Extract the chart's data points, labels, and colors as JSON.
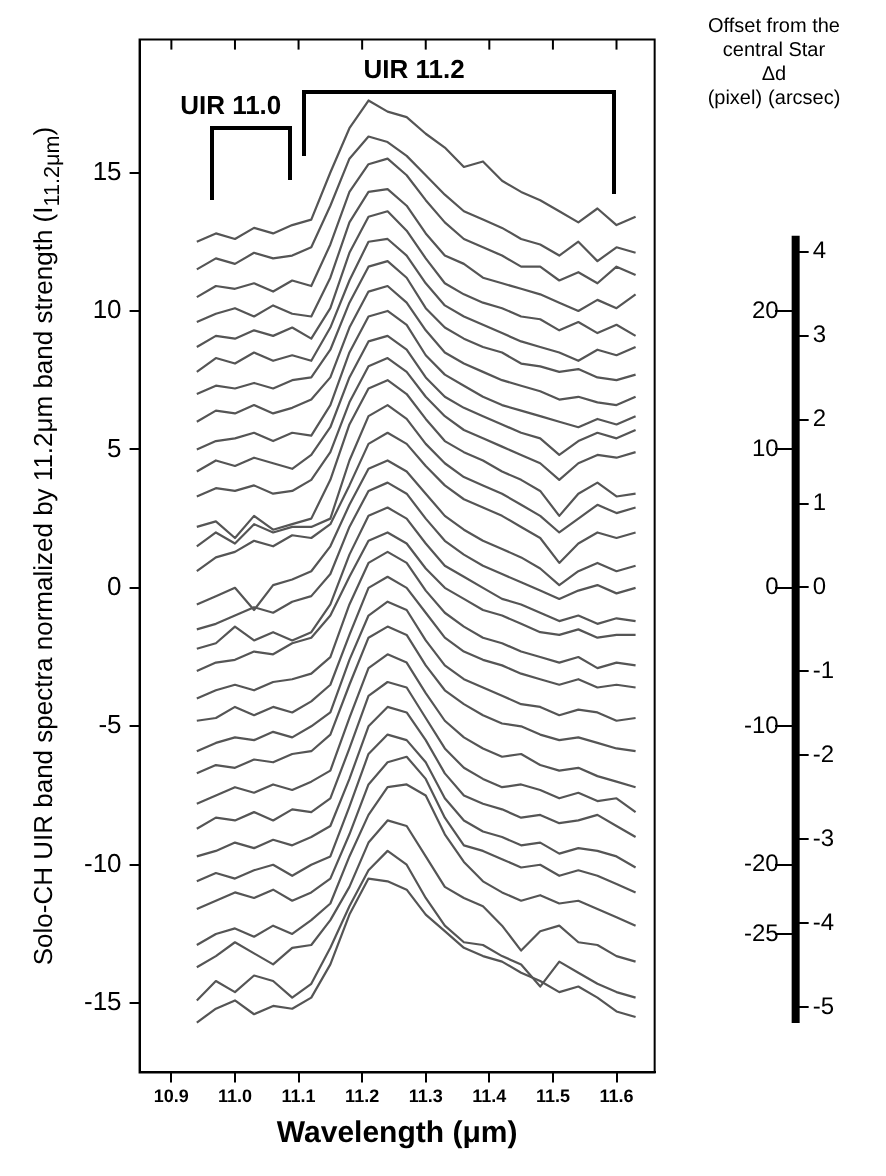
{
  "chart_data": {
    "type": "line",
    "xlabel": "Wavelength (μm)",
    "ylabel": "Solo-CH UIR band spectra normalized by 11.2μm band strength (I$_{11.2μm}$)",
    "y2label": "(pixel)",
    "y3label": "(arcsec)",
    "color": "#555555",
    "marker": "none",
    "annotations": [
      "Offset from the central Star",
      "Δd",
      "UIR 11.0",
      "UIR 11.2"
    ],
    "xlim": [
      10.85,
      11.66
    ],
    "xticks": [
      10.9,
      {
        "value": 11,
        "label": "11.0"
      },
      11.1,
      11.2,
      11.3,
      11.4,
      11.5,
      11.6
    ],
    "ylim": [
      -17.5,
      19.8
    ],
    "yticks": [
      -15,
      -10,
      -5,
      0,
      5,
      10,
      15
    ],
    "y2lim": [
      -35,
      39.6
    ],
    "y2ticks": [
      20,
      10,
      0,
      -10,
      -20,
      -25
    ],
    "y3lim": [
      -5.78,
      6.53
    ],
    "y3ticks": [
      4,
      3,
      2,
      1,
      0,
      -1,
      -2,
      -3,
      -4,
      -5
    ],
    "x": [
      10.94,
      10.97,
      11.0,
      11.03,
      11.06,
      11.09,
      11.12,
      11.15,
      11.18,
      11.21,
      11.24,
      11.27,
      11.3,
      11.33,
      11.36,
      11.39,
      11.42,
      11.45,
      11.48,
      11.51,
      11.54,
      11.57,
      11.6,
      11.63
    ],
    "series": [
      {
        "values": [
          12.5,
          12.8,
          12.6,
          13.0,
          12.8,
          13.1,
          13.3,
          15.0,
          16.6,
          17.6,
          17.2,
          17.0,
          16.4,
          15.9,
          15.2,
          15.4,
          14.7,
          14.3,
          14.0,
          13.6,
          13.2,
          13.7,
          13.1,
          13.4
        ]
      },
      {
        "values": [
          11.5,
          11.9,
          11.7,
          12.1,
          11.9,
          12.0,
          12.3,
          13.8,
          15.5,
          16.3,
          16.1,
          15.6,
          14.9,
          14.2,
          13.6,
          13.3,
          13.0,
          12.6,
          12.4,
          12.0,
          12.5,
          11.8,
          12.3,
          12.1
        ]
      },
      {
        "values": [
          10.5,
          10.9,
          10.8,
          11.0,
          10.7,
          11.1,
          10.9,
          12.4,
          14.3,
          15.3,
          15.5,
          14.9,
          14.0,
          13.2,
          12.6,
          12.3,
          12.0,
          11.6,
          11.6,
          11.1,
          11.4,
          11.0,
          11.6,
          11.3
        ]
      },
      {
        "values": [
          9.6,
          9.9,
          10.1,
          9.8,
          10.2,
          9.9,
          9.8,
          11.2,
          13.2,
          14.3,
          14.4,
          13.8,
          12.8,
          12.0,
          11.7,
          11.2,
          11.0,
          10.8,
          10.6,
          10.3,
          10.0,
          10.4,
          10.1,
          10.6
        ]
      },
      {
        "values": [
          8.7,
          9.1,
          9.0,
          9.3,
          9.1,
          9.4,
          9.0,
          10.1,
          12.1,
          13.4,
          13.6,
          12.9,
          11.9,
          11.0,
          10.6,
          10.3,
          10.1,
          9.8,
          9.7,
          9.3,
          9.6,
          9.2,
          9.5,
          9.1
        ]
      },
      {
        "values": [
          7.8,
          8.3,
          8.1,
          8.5,
          8.2,
          8.4,
          8.2,
          9.4,
          11.1,
          12.5,
          12.6,
          12.0,
          11.0,
          10.2,
          9.8,
          9.5,
          9.2,
          8.9,
          8.7,
          8.5,
          8.2,
          8.6,
          8.4,
          8.7
        ]
      },
      {
        "values": [
          7.0,
          7.3,
          7.2,
          7.4,
          7.2,
          7.5,
          7.6,
          8.6,
          10.3,
          11.6,
          11.8,
          11.2,
          10.1,
          9.4,
          9.0,
          8.7,
          8.5,
          8.1,
          8.0,
          7.8,
          7.9,
          7.6,
          7.5,
          7.7
        ]
      },
      {
        "values": [
          6.0,
          6.4,
          6.3,
          6.6,
          6.3,
          6.5,
          6.8,
          7.6,
          9.4,
          10.7,
          10.9,
          10.3,
          9.3,
          8.5,
          8.1,
          7.8,
          7.5,
          7.3,
          7.1,
          6.8,
          6.9,
          6.7,
          6.6,
          6.9
        ]
      },
      {
        "values": [
          5.0,
          5.3,
          5.4,
          5.6,
          5.3,
          5.6,
          5.5,
          6.6,
          8.5,
          9.8,
          10.0,
          9.5,
          8.4,
          7.7,
          7.3,
          6.9,
          6.6,
          6.4,
          6.2,
          6.0,
          5.8,
          6.1,
          5.9,
          6.2
        ]
      },
      {
        "values": [
          4.2,
          4.6,
          4.4,
          4.7,
          4.5,
          4.3,
          4.8,
          5.8,
          7.6,
          8.9,
          9.1,
          8.6,
          7.6,
          6.9,
          6.5,
          6.2,
          5.9,
          5.6,
          5.4,
          4.8,
          5.3,
          5.6,
          5.4,
          5.7
        ]
      },
      {
        "values": [
          3.3,
          3.6,
          3.5,
          3.7,
          3.4,
          3.5,
          3.9,
          4.9,
          6.7,
          8.0,
          8.3,
          7.8,
          6.9,
          6.2,
          5.7,
          5.4,
          5.1,
          4.8,
          4.5,
          3.9,
          4.5,
          4.8,
          4.7,
          4.9
        ]
      },
      {
        "values": [
          2.2,
          2.4,
          1.8,
          2.6,
          2.1,
          2.3,
          2.5,
          3.9,
          5.9,
          7.2,
          7.5,
          7.0,
          6.1,
          5.3,
          4.9,
          4.6,
          4.2,
          3.9,
          3.5,
          2.6,
          3.4,
          3.8,
          3.3,
          3.4
        ]
      },
      {
        "values": [
          1.5,
          2.0,
          1.6,
          2.3,
          2.0,
          2.2,
          2.2,
          2.5,
          4.6,
          6.2,
          6.6,
          6.1,
          5.2,
          4.5,
          4.0,
          3.7,
          3.4,
          3.0,
          2.6,
          2.0,
          2.5,
          3.0,
          2.7,
          2.9
        ]
      },
      {
        "values": [
          0.6,
          1.1,
          1.3,
          1.7,
          1.5,
          1.9,
          1.8,
          2.3,
          3.7,
          5.2,
          5.6,
          5.2,
          4.4,
          3.7,
          3.2,
          2.9,
          2.6,
          2.2,
          1.8,
          0.9,
          1.6,
          2.0,
          1.8,
          2.0
        ]
      },
      {
        "values": [
          -0.6,
          -0.3,
          0.0,
          -0.8,
          0.1,
          0.3,
          0.6,
          1.5,
          3.0,
          4.3,
          4.6,
          4.2,
          3.4,
          2.6,
          2.1,
          1.7,
          1.4,
          1.1,
          0.7,
          0.1,
          0.6,
          0.9,
          0.6,
          0.8
        ]
      },
      {
        "values": [
          -1.5,
          -1.3,
          -1.0,
          -0.7,
          -0.9,
          -0.5,
          -0.3,
          0.5,
          2.2,
          3.5,
          3.8,
          3.4,
          2.5,
          1.7,
          1.2,
          0.8,
          0.5,
          0.2,
          -0.1,
          -0.4,
          -0.1,
          0.1,
          -0.2,
          0.0
        ]
      },
      {
        "values": [
          -2.2,
          -2.0,
          -1.4,
          -1.9,
          -1.6,
          -1.9,
          -1.6,
          -0.6,
          1.2,
          2.6,
          2.9,
          2.5,
          1.6,
          0.8,
          0.4,
          0.0,
          -0.4,
          -0.6,
          -0.9,
          -1.2,
          -1.0,
          -1.3,
          -1.1,
          -1.2
        ]
      },
      {
        "values": [
          -3.0,
          -2.7,
          -2.6,
          -2.3,
          -2.4,
          -2.0,
          -1.8,
          -1.0,
          0.4,
          1.7,
          2.0,
          1.6,
          0.7,
          0.0,
          -0.4,
          -0.8,
          -1.0,
          -1.3,
          -1.6,
          -1.7,
          -1.5,
          -1.8,
          -1.7,
          -1.7
        ]
      },
      {
        "values": [
          -4.0,
          -3.7,
          -3.5,
          -3.7,
          -3.4,
          -3.3,
          -3.1,
          -2.5,
          -0.6,
          0.9,
          1.3,
          0.9,
          -0.1,
          -0.9,
          -1.4,
          -1.8,
          -2.0,
          -2.3,
          -2.5,
          -2.7,
          -2.5,
          -2.9,
          -2.7,
          -2.8
        ]
      },
      {
        "values": [
          -4.8,
          -4.7,
          -4.3,
          -4.6,
          -4.3,
          -4.5,
          -4.1,
          -3.5,
          -1.7,
          0.0,
          0.4,
          0.0,
          -0.9,
          -1.8,
          -2.3,
          -2.6,
          -2.8,
          -3.1,
          -3.3,
          -3.5,
          -3.3,
          -3.6,
          -3.5,
          -3.6
        ]
      },
      {
        "values": [
          -5.9,
          -5.6,
          -5.4,
          -5.5,
          -5.2,
          -5.4,
          -5.0,
          -4.5,
          -2.6,
          -1.0,
          -0.5,
          -0.8,
          -1.9,
          -2.8,
          -3.3,
          -3.6,
          -3.9,
          -4.2,
          -4.3,
          -4.6,
          -4.4,
          -4.5,
          -4.8,
          -4.7
        ]
      },
      {
        "values": [
          -6.7,
          -6.4,
          -6.5,
          -6.2,
          -6.3,
          -6.0,
          -5.9,
          -5.3,
          -3.5,
          -1.8,
          -1.4,
          -1.7,
          -2.8,
          -3.7,
          -4.2,
          -4.6,
          -4.9,
          -5.0,
          -5.3,
          -5.5,
          -5.4,
          -5.6,
          -5.8,
          -5.9
        ]
      },
      {
        "values": [
          -7.8,
          -7.5,
          -7.2,
          -7.4,
          -7.1,
          -7.3,
          -7.0,
          -6.6,
          -4.7,
          -2.9,
          -2.4,
          -2.7,
          -3.8,
          -4.8,
          -5.4,
          -5.8,
          -6.1,
          -6.0,
          -6.4,
          -6.6,
          -6.5,
          -6.8,
          -7.0,
          -7.2
        ]
      },
      {
        "values": [
          -8.7,
          -8.3,
          -8.4,
          -8.1,
          -8.4,
          -8.0,
          -8.1,
          -7.6,
          -5.8,
          -3.9,
          -3.4,
          -3.6,
          -4.7,
          -5.8,
          -6.5,
          -6.9,
          -7.2,
          -7.1,
          -7.3,
          -7.6,
          -7.4,
          -7.7,
          -7.6,
          -8.1
        ]
      },
      {
        "values": [
          -9.7,
          -9.5,
          -9.2,
          -9.4,
          -9.1,
          -9.3,
          -9.0,
          -8.6,
          -6.9,
          -5.0,
          -4.3,
          -4.5,
          -5.5,
          -6.7,
          -7.5,
          -7.8,
          -8.0,
          -8.3,
          -8.2,
          -8.5,
          -8.4,
          -8.2,
          -8.6,
          -9.0
        ]
      },
      {
        "values": [
          -10.6,
          -10.3,
          -10.5,
          -10.2,
          -10.0,
          -10.4,
          -10.0,
          -9.7,
          -7.9,
          -6.0,
          -5.3,
          -5.5,
          -6.3,
          -7.6,
          -8.4,
          -8.8,
          -9.0,
          -9.3,
          -9.2,
          -9.6,
          -9.4,
          -9.5,
          -9.7,
          -10.1
        ]
      },
      {
        "values": [
          -11.6,
          -11.3,
          -11.0,
          -11.2,
          -10.9,
          -11.3,
          -11.0,
          -10.5,
          -8.9,
          -7.1,
          -6.3,
          -6.1,
          -6.9,
          -8.3,
          -9.3,
          -9.5,
          -9.8,
          -10.1,
          -10.0,
          -10.4,
          -10.2,
          -10.4,
          -10.7,
          -11.0
        ]
      },
      {
        "values": [
          -12.9,
          -12.5,
          -12.3,
          -12.6,
          -12.2,
          -12.5,
          -12.0,
          -11.4,
          -9.7,
          -8.2,
          -7.2,
          -7.1,
          -7.5,
          -8.9,
          -9.9,
          -10.6,
          -11.0,
          -11.3,
          -11.1,
          -11.4,
          -11.3,
          -11.6,
          -11.9,
          -12.2
        ]
      },
      {
        "values": [
          -13.7,
          -13.3,
          -12.8,
          -13.2,
          -13.6,
          -13.0,
          -12.9,
          -12.0,
          -10.8,
          -9.2,
          -8.4,
          -8.6,
          -9.7,
          -10.8,
          -11.2,
          -11.5,
          -12.2,
          -13.1,
          -12.4,
          -12.2,
          -12.8,
          -12.9,
          -13.3,
          -13.5
        ]
      },
      {
        "values": [
          -14.9,
          -14.2,
          -14.6,
          -14.0,
          -14.2,
          -14.8,
          -14.3,
          -13.0,
          -11.5,
          -10.2,
          -9.5,
          -10.0,
          -11.2,
          -12.2,
          -12.8,
          -12.9,
          -13.3,
          -13.6,
          -14.4,
          -13.5,
          -13.9,
          -14.3,
          -14.6,
          -14.8
        ]
      },
      {
        "values": [
          -15.7,
          -15.2,
          -14.9,
          -15.4,
          -15.1,
          -15.2,
          -14.8,
          -13.6,
          -11.8,
          -10.5,
          -10.6,
          -10.9,
          -11.8,
          -12.4,
          -13.0,
          -13.3,
          -13.5,
          -13.9,
          -14.2,
          -14.6,
          -14.4,
          -14.8,
          -15.3,
          -15.5
        ]
      }
    ]
  }
}
